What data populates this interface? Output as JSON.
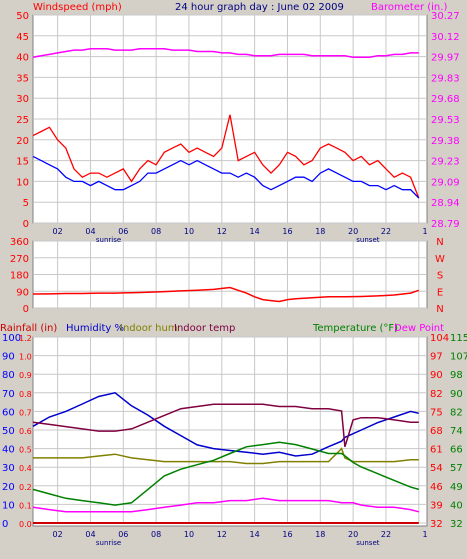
{
  "header": {
    "title": "24 hour graph day : June 02 2009",
    "left_label": "Windspeed (mph)",
    "right_label": "Barometer (in.)"
  },
  "lower_header": {
    "rainfall_label": "Rainfall (in)",
    "humidity_label": "Humidity %",
    "indoor_hum_label": "Indoor hum",
    "indoor_temp_label": "Indoor temp",
    "temperature_label": "Temperature (°F)",
    "dew_point_label": "Dew Point"
  },
  "colors": {
    "background": "#d4d0c8",
    "plot_bg": "#ffffff",
    "wind": "#ff0000",
    "gust": "#ff0000",
    "barometer": "#ff00ff",
    "wind_avg": "#0000ff",
    "humidity": "#0000cc",
    "indoor_hum": "#808000",
    "indoor_temp": "#800040",
    "temperature": "#008000",
    "dew_point": "#ff00ff",
    "rain": "#cc0000",
    "direction": "#ff0000",
    "axis_red": "#ff0000",
    "axis_blue": "#0000ff",
    "axis_green": "#008000",
    "axis_olive": "#808000"
  },
  "x_ticks": [
    "02",
    "04",
    "06",
    "08",
    "10",
    "12",
    "14",
    "16",
    "18",
    "20",
    "22",
    "1"
  ],
  "sunrise_label": "sunrise",
  "sunset_label": "sunset",
  "chart_data": [
    {
      "type": "line",
      "name": "wind-barometer",
      "x_hours": [
        0,
        0.5,
        1,
        1.5,
        2,
        2.5,
        3,
        3.5,
        4,
        4.5,
        5,
        5.5,
        6,
        6.5,
        7,
        7.5,
        8,
        8.5,
        9,
        9.5,
        10,
        10.5,
        11,
        11.5,
        12,
        12.5,
        13,
        13.5,
        14,
        14.5,
        15,
        15.5,
        16,
        16.5,
        17,
        17.5,
        18,
        18.5,
        19,
        19.5,
        20,
        20.5,
        21,
        21.5,
        22,
        22.5,
        23,
        23.5
      ],
      "gust_values": [
        21,
        22,
        23,
        20,
        18,
        13,
        11,
        12,
        12,
        11,
        12,
        13,
        10,
        13,
        15,
        14,
        17,
        18,
        19,
        17,
        18,
        17,
        16,
        18,
        26,
        15,
        16,
        17,
        14,
        12,
        14,
        17,
        16,
        14,
        15,
        18,
        19,
        18,
        17,
        15,
        16,
        14,
        15,
        13,
        11,
        12,
        11,
        6
      ],
      "avg_values": [
        16,
        15,
        14,
        13,
        11,
        10,
        10,
        9,
        10,
        9,
        8,
        8,
        9,
        10,
        12,
        12,
        13,
        14,
        15,
        14,
        15,
        14,
        13,
        12,
        12,
        11,
        12,
        11,
        9,
        8,
        9,
        10,
        11,
        11,
        10,
        12,
        13,
        12,
        11,
        10,
        10,
        9,
        9,
        8,
        9,
        8,
        8,
        6
      ],
      "barometer": [
        29.97,
        29.98,
        29.99,
        30.0,
        30.01,
        30.02,
        30.02,
        30.03,
        30.03,
        30.03,
        30.02,
        30.02,
        30.02,
        30.03,
        30.03,
        30.03,
        30.03,
        30.02,
        30.02,
        30.02,
        30.01,
        30.01,
        30.01,
        30.0,
        30.0,
        29.99,
        29.99,
        29.98,
        29.98,
        29.98,
        29.99,
        29.99,
        29.99,
        29.99,
        29.98,
        29.98,
        29.98,
        29.98,
        29.98,
        29.97,
        29.97,
        29.97,
        29.98,
        29.98,
        29.99,
        29.99,
        30.0,
        30.0
      ],
      "y_ticks_left": [
        0,
        5,
        10,
        15,
        20,
        25,
        30,
        35,
        40,
        45,
        50
      ],
      "y_ticks_right": [
        "28.79",
        "28.94",
        "29.09",
        "29.23",
        "29.38",
        "29.53",
        "29.68",
        "29.83",
        "29.97",
        "30.12",
        "30.27"
      ],
      "ylim": [
        0,
        50
      ],
      "baro_lim": [
        28.79,
        30.27
      ]
    },
    {
      "type": "line",
      "name": "wind-direction",
      "x_hours": [
        0,
        1,
        2,
        3,
        4,
        5,
        6,
        7,
        8,
        9,
        10,
        11,
        12,
        12.5,
        13,
        13.5,
        14,
        14.5,
        15,
        15.5,
        16,
        17,
        18,
        19,
        20,
        21,
        22,
        23,
        23.5
      ],
      "values": [
        75,
        76,
        78,
        78,
        80,
        80,
        82,
        85,
        88,
        92,
        95,
        100,
        110,
        95,
        80,
        60,
        45,
        40,
        35,
        45,
        50,
        55,
        60,
        60,
        62,
        65,
        70,
        80,
        95
      ],
      "y_ticks_left": [
        0,
        90,
        180,
        270,
        360
      ],
      "y_ticks_right": [
        "N",
        "E",
        "S",
        "W",
        "N"
      ],
      "ylim": [
        0,
        360
      ]
    },
    {
      "type": "line",
      "name": "temperature-humidity",
      "x_hours": [
        0,
        1,
        2,
        3,
        4,
        5,
        6,
        7,
        8,
        9,
        10,
        11,
        12,
        13,
        14,
        15,
        16,
        17,
        18,
        18.8,
        19,
        19.5,
        20,
        21,
        22,
        23,
        23.5
      ],
      "series": [
        {
          "name": "Humidity %",
          "values": [
            52,
            57,
            60,
            64,
            68,
            70,
            63,
            58,
            52,
            47,
            42,
            40,
            39,
            38,
            37,
            38,
            36,
            37,
            41,
            44,
            46,
            48,
            50,
            54,
            57,
            60,
            59
          ]
        },
        {
          "name": "Indoor hum",
          "values": [
            35,
            35,
            35,
            35,
            36,
            37,
            35,
            34,
            33,
            33,
            33,
            33,
            33,
            32,
            32,
            33,
            33,
            33,
            33,
            40,
            35,
            33,
            33,
            33,
            33,
            34,
            34
          ]
        },
        {
          "name": "Indoor temp",
          "values": [
            77,
            76,
            75,
            74,
            73,
            73,
            74,
            77,
            80,
            83,
            84,
            85,
            85,
            85,
            85,
            84,
            84,
            83,
            83,
            82,
            66,
            78,
            79,
            79,
            78,
            77,
            77
          ]
        },
        {
          "name": "Temperature (°F)",
          "values": [
            47,
            45,
            43,
            42,
            41,
            40,
            41,
            47,
            53,
            56,
            58,
            60,
            63,
            66,
            67,
            68,
            67,
            65,
            63,
            63,
            62,
            59,
            57,
            54,
            51,
            48,
            47
          ]
        },
        {
          "name": "Dew Point",
          "values": [
            39,
            38,
            37,
            37,
            37,
            37,
            37,
            38,
            39,
            40,
            41,
            41,
            42,
            42,
            43,
            42,
            42,
            42,
            42,
            41,
            41,
            41,
            40,
            39,
            39,
            38,
            37
          ]
        }
      ],
      "rain_values": [
        0,
        0,
        0,
        0,
        0,
        0,
        0,
        0,
        0,
        0,
        0,
        0,
        0,
        0,
        0,
        0,
        0,
        0,
        0,
        0,
        0,
        0,
        0,
        0,
        0,
        0,
        0
      ],
      "y_ticks_rain": [
        "0.0",
        "0.1",
        "0.2",
        "0.4",
        "0.5",
        "0.6",
        "0.7",
        "0.8",
        "0.9",
        "1.0",
        "1.2"
      ],
      "y_ticks_hum": [
        "0",
        "10",
        "20",
        "30",
        "40",
        "50",
        "60",
        "70",
        "80",
        "90",
        "100"
      ],
      "y_ticks_temp": [
        "32",
        "39",
        "46",
        "54",
        "61",
        "68",
        "75",
        "82",
        "90",
        "97",
        "104"
      ],
      "y_ticks_temp2": [
        "32",
        "40",
        "49",
        "57",
        "66",
        "74",
        "82",
        "90",
        "98",
        "107",
        "115"
      ],
      "temp_lim": [
        32,
        115
      ],
      "hum_lim": [
        0,
        100
      ]
    }
  ]
}
